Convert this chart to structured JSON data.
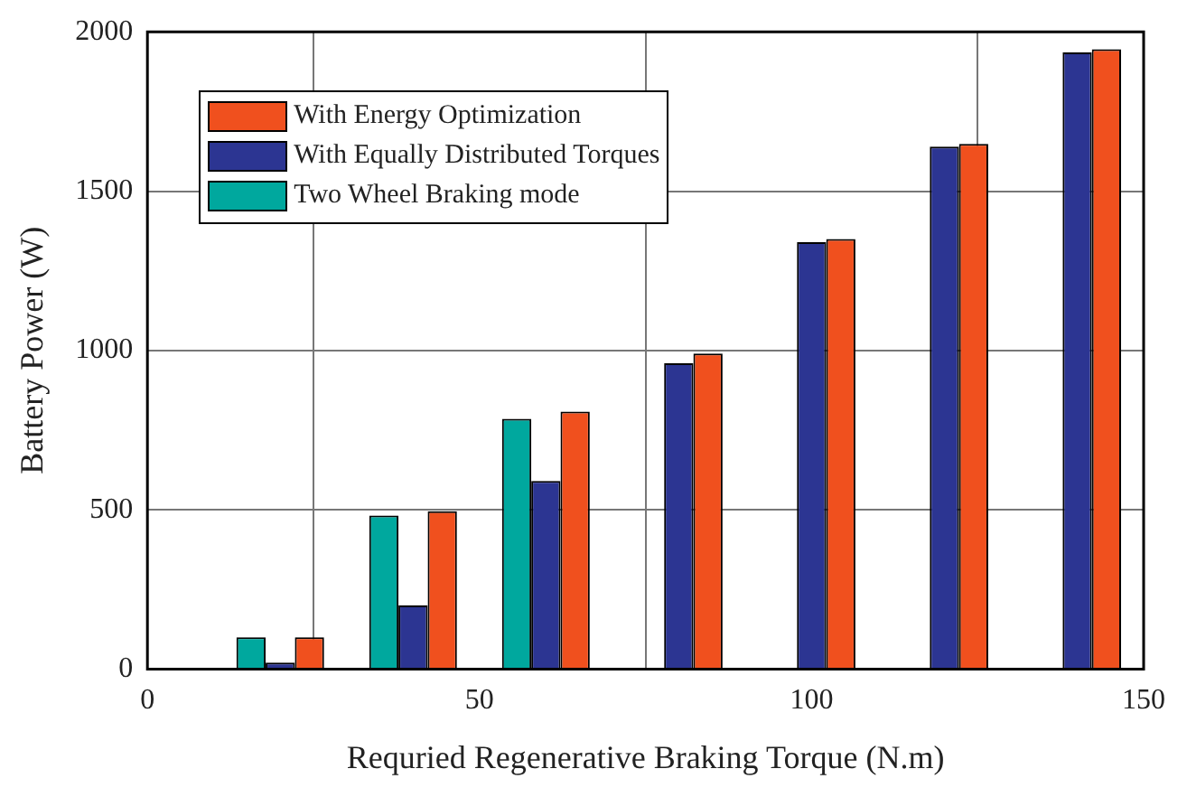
{
  "chart_data": {
    "type": "bar",
    "xlabel": "Requried Regenerative Braking Torque (N.m)",
    "ylabel": "Battery Power (W)",
    "x": [
      20,
      40,
      60,
      80,
      100,
      120,
      140
    ],
    "series": [
      {
        "name": "Two Wheel Braking mode",
        "color": "#00a89e",
        "values": [
          100,
          482,
          785,
          0,
          0,
          0,
          0
        ]
      },
      {
        "name": "With Equally Distributed Torques",
        "color": "#2c3592",
        "values": [
          20,
          200,
          590,
          960,
          1340,
          1640,
          1935
        ]
      },
      {
        "name": "With Energy Optimization",
        "color": "#f0501e",
        "values": [
          100,
          495,
          808,
          990,
          1350,
          1648,
          1945
        ]
      }
    ],
    "xlim": [
      0,
      150
    ],
    "xticks": [
      0,
      50,
      100,
      150
    ],
    "ylim": [
      0,
      2000
    ],
    "yticks": [
      0,
      500,
      1000,
      1500,
      2000
    ],
    "grid": true,
    "legend": "top left"
  }
}
